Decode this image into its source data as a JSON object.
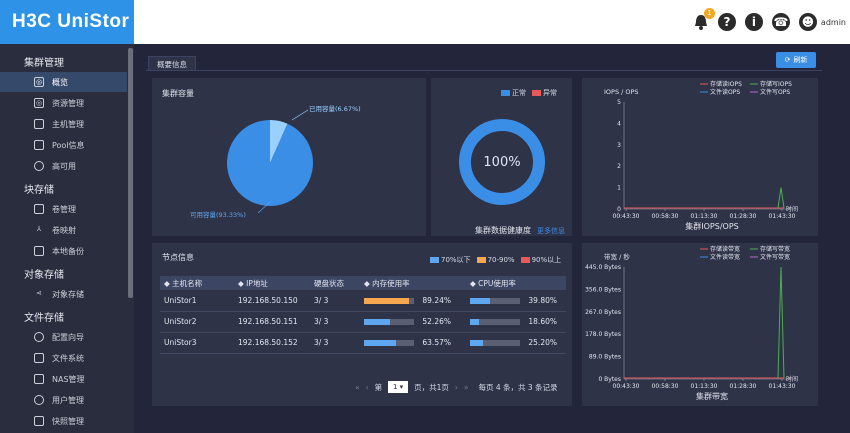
{
  "app": {
    "logo": "H3C UniStor",
    "user": "admin",
    "notification_count": "1"
  },
  "sidebar": {
    "groups": [
      {
        "label": "集群管理"
      },
      {
        "label": "块存储"
      },
      {
        "label": "对象存储"
      },
      {
        "label": "文件存储"
      }
    ],
    "items": [
      {
        "label": "概览",
        "icon": "globe-icon"
      },
      {
        "label": "资源管理",
        "icon": "globe-icon"
      },
      {
        "label": "主机管理",
        "icon": "monitor-icon"
      },
      {
        "label": "Pool信息",
        "icon": "document-icon"
      },
      {
        "label": "高可用",
        "icon": "circle-icon"
      },
      {
        "label": "卷管理",
        "icon": "disk-icon"
      },
      {
        "label": "卷映射",
        "icon": "fork-icon"
      },
      {
        "label": "本地备份",
        "icon": "backup-icon"
      },
      {
        "label": "对象存储",
        "icon": "share-icon"
      },
      {
        "label": "配置向导",
        "icon": "wizard-icon"
      },
      {
        "label": "文件系统",
        "icon": "edit-icon"
      },
      {
        "label": "NAS管理",
        "icon": "nas-icon"
      },
      {
        "label": "用户管理",
        "icon": "user-icon"
      },
      {
        "label": "快照管理",
        "icon": "camera-icon"
      }
    ]
  },
  "main": {
    "tab": "概要信息",
    "refresh_label": "刷新",
    "capacity": {
      "title": "集群容量",
      "used_label": "已用容量(6.67%)",
      "free_label": "可用容量(93.33%)"
    },
    "health": {
      "title": "集群数据健康度",
      "more": "更多信息",
      "value": "100%",
      "legend_normal": "正常",
      "legend_abnormal": "异常"
    },
    "nodes": {
      "title": "节点信息",
      "legend": [
        "70%以下",
        "70-90%",
        "90%以上"
      ],
      "columns": [
        "主机名称",
        "IP地址",
        "硬盘状态",
        "内存使用率",
        "CPU使用率"
      ],
      "rows": [
        {
          "name": "UniStor1",
          "ip": "192.168.50.150",
          "disk": "3/ 3",
          "mem": "89.24%",
          "cpu": "39.80%",
          "mem_frac": 0.8924,
          "cpu_frac": 0.398
        },
        {
          "name": "UniStor2",
          "ip": "192.168.50.151",
          "disk": "3/ 3",
          "mem": "52.26%",
          "cpu": "18.60%",
          "mem_frac": 0.5226,
          "cpu_frac": 0.186
        },
        {
          "name": "UniStor3",
          "ip": "192.168.50.152",
          "disk": "3/ 3",
          "mem": "63.57%",
          "cpu": "25.20%",
          "mem_frac": 0.6357,
          "cpu_frac": 0.252
        }
      ],
      "pager": {
        "prefix": "第",
        "page": "1",
        "suffix": "页，共1页",
        "summary": "每页 4 条，共 3 条记录"
      }
    },
    "colors": {
      "mem_fill": "#f5a74f",
      "normal_fill": "#5ea7f0",
      "abnormal": "#e85a5a",
      "orange": "#f5a74f",
      "accent": "#3a8ee6"
    }
  },
  "chart_data": [
    {
      "type": "pie",
      "title": "集群容量",
      "categories": [
        "已用容量",
        "可用容量"
      ],
      "values": [
        6.67,
        93.33
      ]
    },
    {
      "type": "pie",
      "title": "集群数据健康度",
      "categories": [
        "正常",
        "异常"
      ],
      "values": [
        100,
        0
      ]
    },
    {
      "type": "line",
      "title": "集群IOPS/OPS",
      "ylabel": "IOPS / OPS",
      "xlabel": "时间",
      "ylim": [
        0,
        5
      ],
      "yticks": [
        "0",
        "1",
        "2",
        "3",
        "4",
        "5"
      ],
      "xticks": [
        "00:43:30",
        "00:58:30",
        "01:13:30",
        "01:28:30",
        "01:43:30"
      ],
      "legend": [
        "存储读IOPS",
        "存储写IOPS",
        "文件读OPS",
        "文件写OPS"
      ],
      "series": [
        {
          "name": "存储写IOPS",
          "peak": 1,
          "peak_x": "01:43:30"
        }
      ]
    },
    {
      "type": "line",
      "title": "集群带宽",
      "ylabel": "带宽 / 秒",
      "xlabel": "时间",
      "ylim": [
        0,
        445
      ],
      "yticks": [
        "0 Bytes",
        "89.0 Bytes",
        "178.0 Bytes",
        "267.0 Bytes",
        "356.0 Bytes",
        "445.0 Bytes"
      ],
      "xticks": [
        "00:43:30",
        "00:58:30",
        "01:13:30",
        "01:28:30",
        "01:43:30"
      ],
      "legend": [
        "存储读带宽",
        "存储写带宽",
        "文件读带宽",
        "文件写带宽"
      ],
      "series": [
        {
          "name": "存储写带宽",
          "peak": 445,
          "peak_x": "01:43:30"
        }
      ]
    }
  ]
}
